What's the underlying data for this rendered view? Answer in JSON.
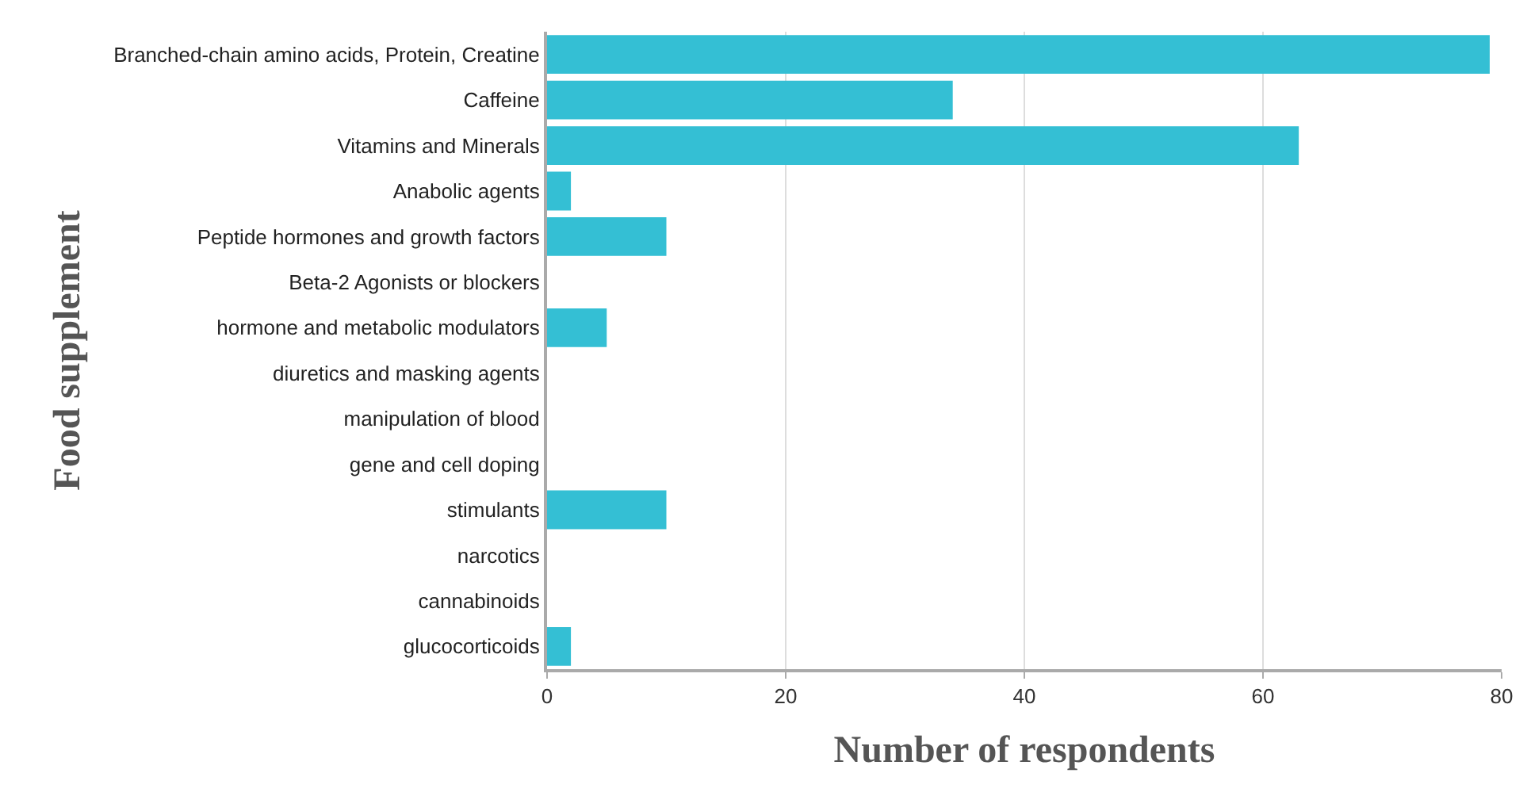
{
  "chart_data": {
    "type": "bar",
    "orientation": "horizontal",
    "categories": [
      "Branched-chain amino acids, Protein, Creatine",
      "Caffeine",
      "Vitamins and Minerals",
      "Anabolic agents",
      "Peptide hormones and growth factors",
      "Beta-2 Agonists or blockers",
      "hormone and metabolic modulators",
      "diuretics and masking agents",
      "manipulation of blood",
      "gene and cell doping",
      "stimulants",
      "narcotics",
      "cannabinoids",
      "glucocorticoids"
    ],
    "values": [
      79,
      34,
      63,
      2,
      10,
      0,
      5,
      0,
      0,
      0,
      10,
      0,
      0,
      2
    ],
    "color": "#34bfd4",
    "xlabel": "Number of respondents",
    "ylabel": "Food supplement",
    "xlim": [
      0,
      80
    ],
    "xticks": [
      0,
      20,
      40,
      60,
      80
    ],
    "grid": "x"
  }
}
